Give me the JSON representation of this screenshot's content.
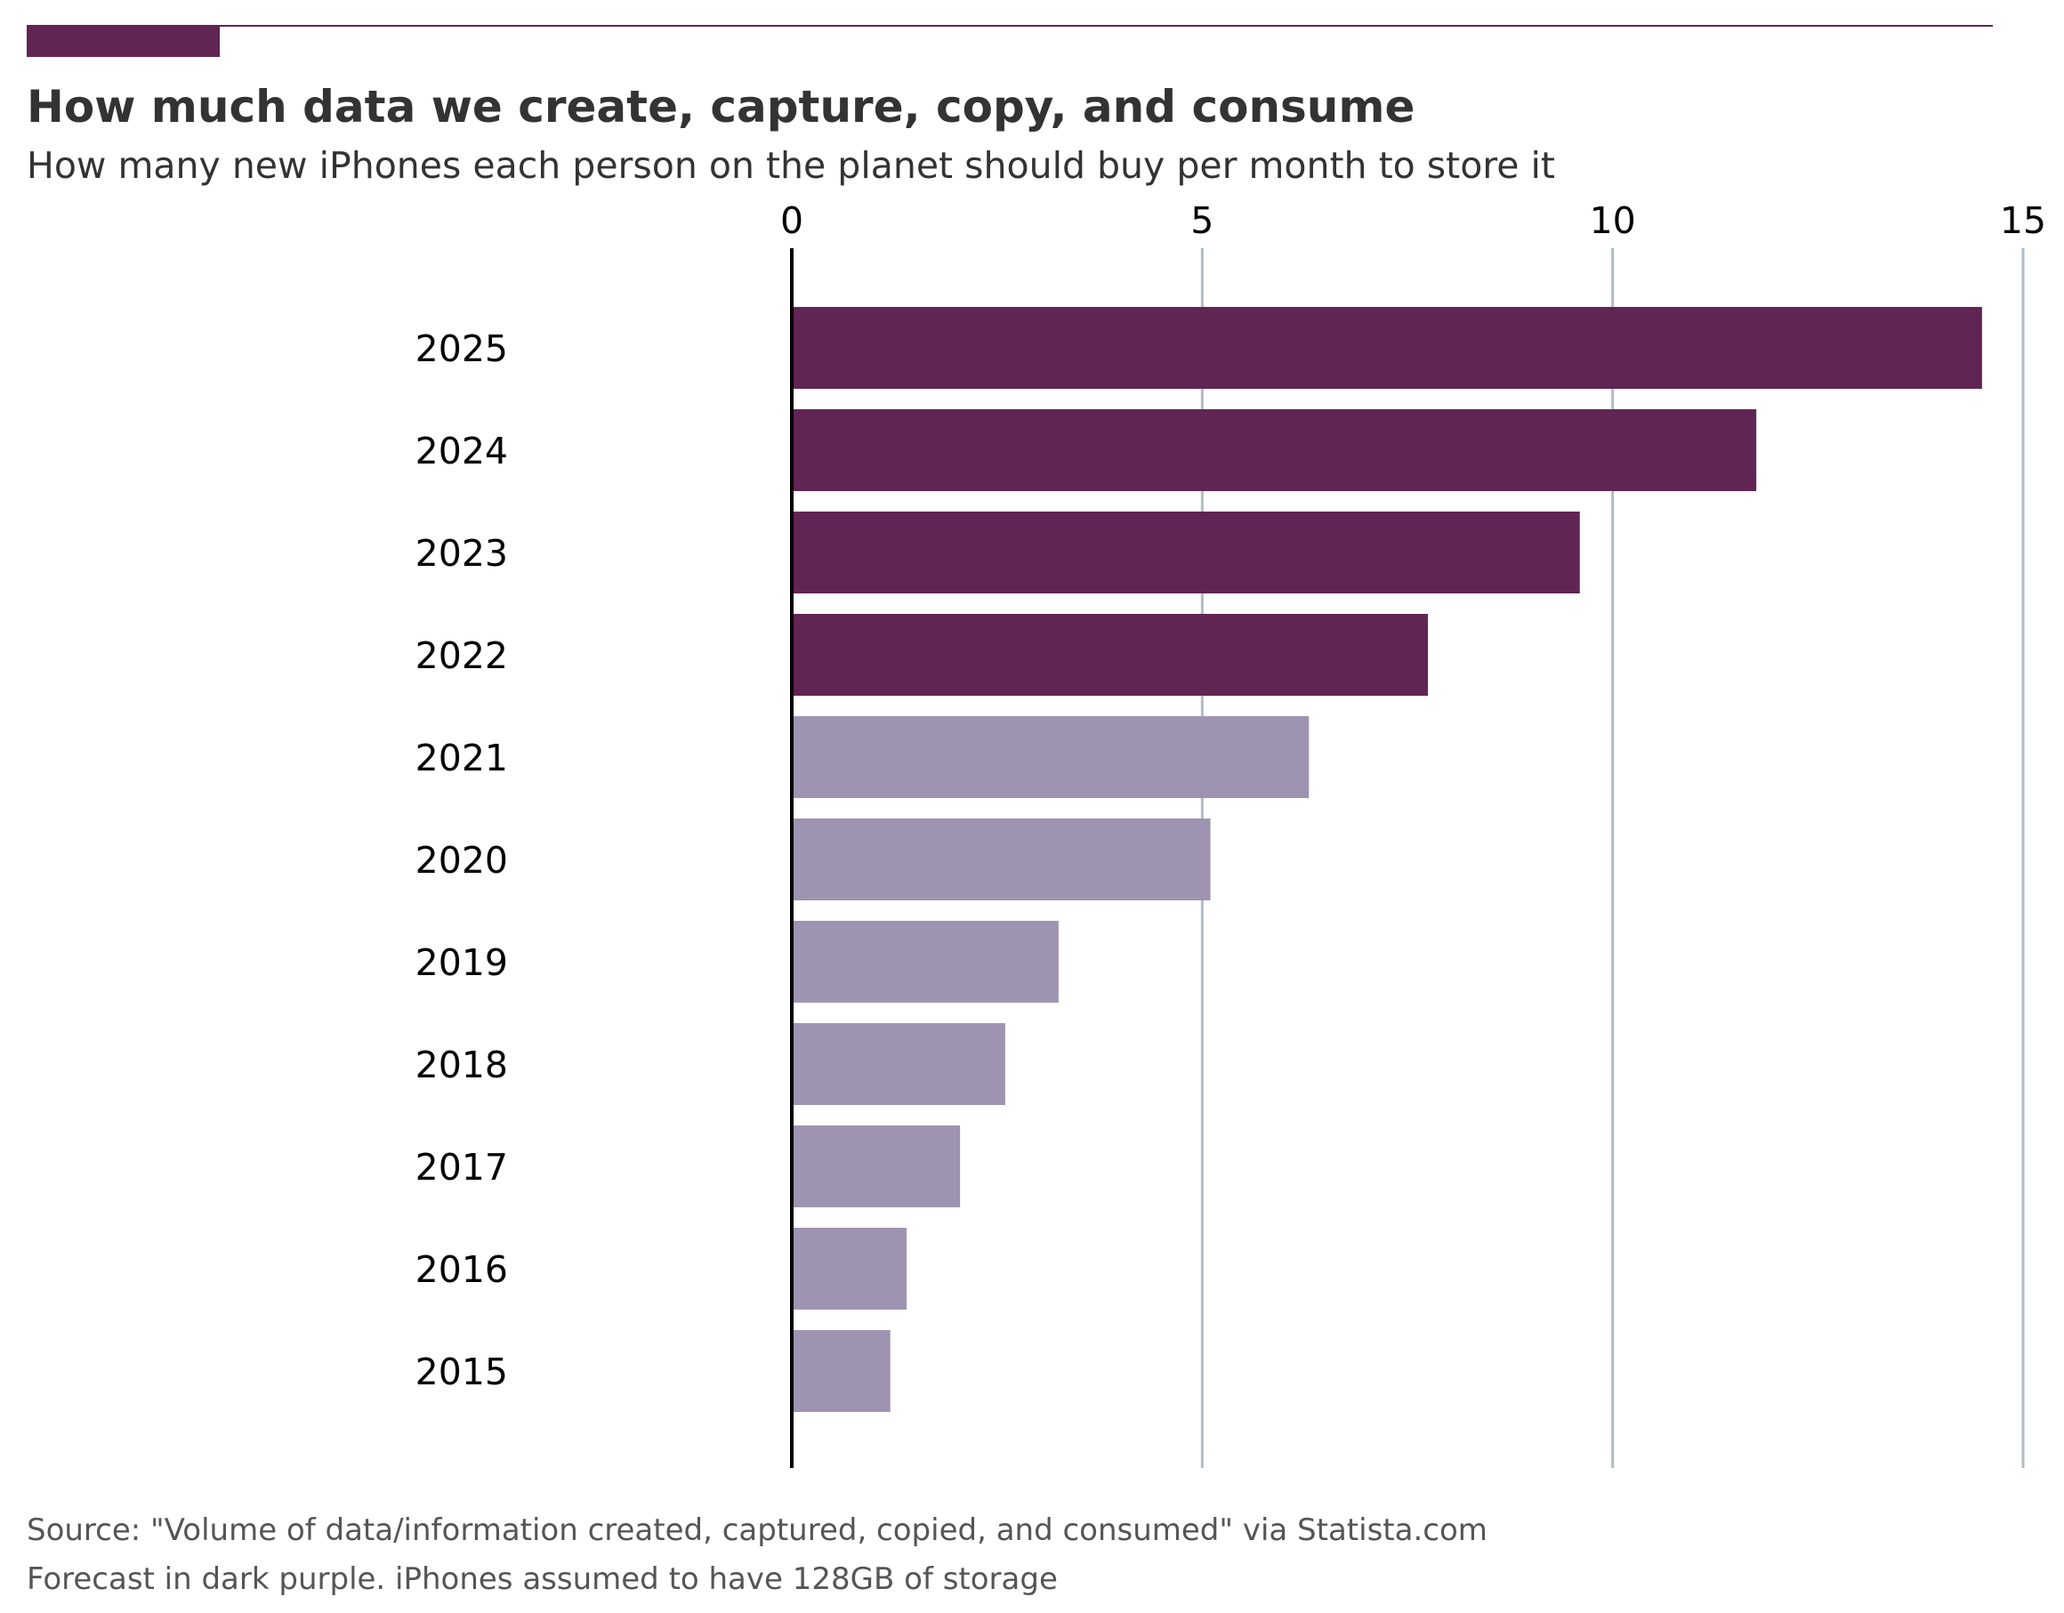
{
  "chart_data": {
    "type": "bar",
    "orientation": "horizontal",
    "title": "How much data we create, capture, copy, and consume",
    "subtitle": "How many new iPhones each person on the planet should buy per month to store it",
    "categories": [
      "2025",
      "2024",
      "2023",
      "2022",
      "2021",
      "2020",
      "2019",
      "2018",
      "2017",
      "2016",
      "2015"
    ],
    "values": [
      14.5,
      11.75,
      9.6,
      7.75,
      6.3,
      5.1,
      3.25,
      2.6,
      2.05,
      1.4,
      1.2
    ],
    "forecast": [
      true,
      true,
      true,
      true,
      false,
      false,
      false,
      false,
      false,
      false,
      false
    ],
    "xlim": [
      0,
      15
    ],
    "xticks": [
      "0",
      "5",
      "10",
      "15"
    ],
    "xlabel": "",
    "ylabel": "",
    "grid": true,
    "legend": "none",
    "notes": [
      "Source: \"Volume of data/information created, captured, copied, and consumed\" via Statista.com",
      "Forecast in dark purple. iPhones assumed to have 128GB of storage"
    ]
  },
  "colors": {
    "forecast_bar": "#612554",
    "historical_bar": "#9e94b1",
    "accent": "#612554",
    "grid": "#b2bcc4",
    "axis": "#000000",
    "title": "#333333",
    "subtitle": "#333333",
    "notes": "#555555"
  }
}
